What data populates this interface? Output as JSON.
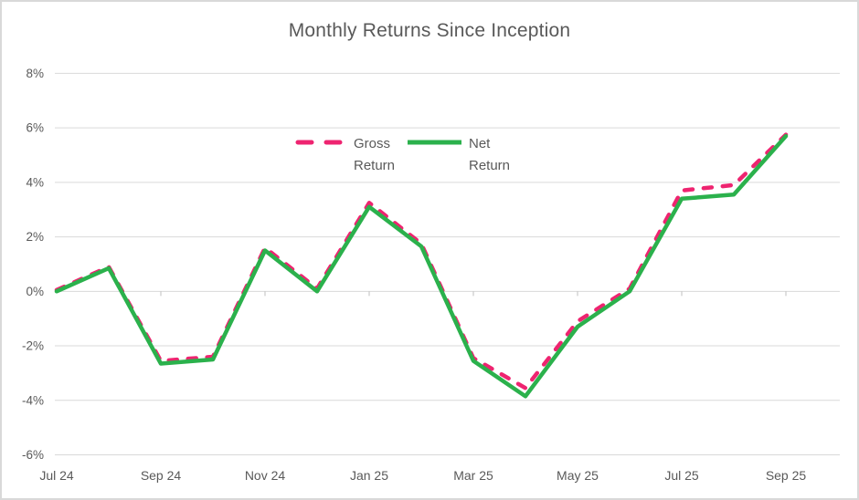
{
  "title": "Monthly Returns Since Inception",
  "chart_data": {
    "type": "line",
    "title": "Monthly Returns Since Inception",
    "xlabel": "",
    "ylabel": "",
    "ylim": [
      -6,
      8
    ],
    "grid": true,
    "legend_position": "top-center-inside",
    "y_ticks": [
      8,
      6,
      4,
      2,
      0,
      -2,
      -4,
      -6
    ],
    "y_tick_labels": [
      "8%",
      "6%",
      "4%",
      "2%",
      "0%",
      "-2%",
      "-4%",
      "-6%"
    ],
    "categories": [
      "Jul 24",
      "Aug 24",
      "Sep 24",
      "Oct 24",
      "Nov 24",
      "Dec 24",
      "Jan 25",
      "Feb 25",
      "Mar 25",
      "Apr 25",
      "May 25",
      "Jun 25",
      "Jul 25",
      "Aug 25",
      "Sep 25"
    ],
    "x_tick_labels": [
      "Jul 24",
      "Sep 24",
      "Nov 24",
      "Jan 25",
      "Mar 25",
      "May 25",
      "Jul 25",
      "Sep 25"
    ],
    "series": [
      {
        "name": "Gross Return",
        "color": "#EE2470",
        "dash": true,
        "values": [
          0.05,
          0.9,
          -2.55,
          -2.4,
          1.6,
          0.1,
          3.25,
          1.75,
          -2.45,
          -3.55,
          -1.1,
          0.1,
          3.7,
          3.9,
          5.75
        ]
      },
      {
        "name": "Net Return",
        "color": "#2BB14C",
        "dash": false,
        "values": [
          0.0,
          0.85,
          -2.65,
          -2.5,
          1.5,
          0.0,
          3.1,
          1.65,
          -2.55,
          -3.85,
          -1.3,
          0.0,
          3.4,
          3.55,
          5.7
        ]
      }
    ]
  },
  "colors": {
    "gridline": "#D9D9D9",
    "axis_tick": "#BFBFBF",
    "text": "#595959",
    "background": "#FFFFFF",
    "border": "#D9D9D9"
  }
}
